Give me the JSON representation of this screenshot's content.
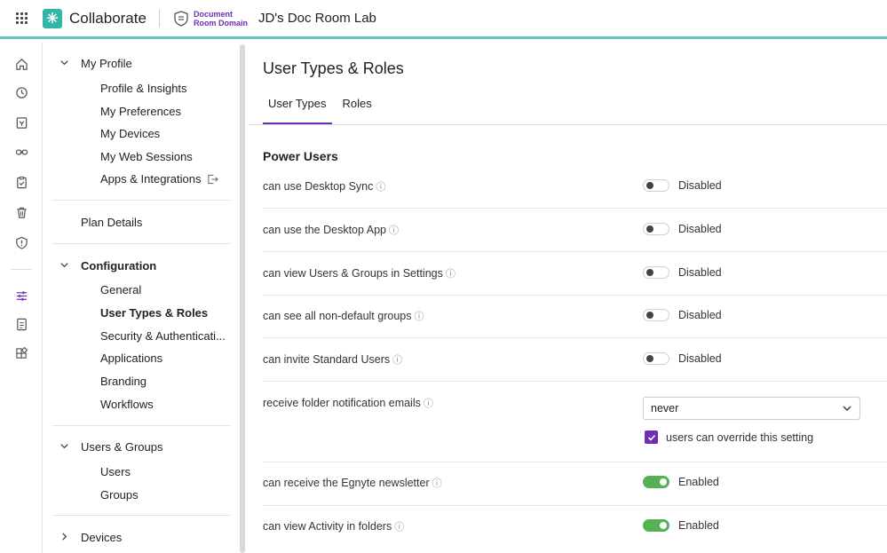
{
  "header": {
    "app_name": "Collaborate",
    "domain_line1": "Document",
    "domain_line2": "Room Domain",
    "room_name": "JD's Doc Room Lab"
  },
  "rail": {
    "icons": [
      "home-icon",
      "clock-icon",
      "inbox-icon",
      "link-icon",
      "clipboard-icon",
      "trash-icon",
      "shield-icon",
      "sliders-icon",
      "report-icon",
      "apps-icon"
    ]
  },
  "nav": {
    "my_profile": {
      "label": "My Profile",
      "items": [
        "Profile & Insights",
        "My Preferences",
        "My Devices",
        "My Web Sessions",
        "Apps & Integrations"
      ]
    },
    "plan_details": "Plan Details",
    "configuration": {
      "label": "Configuration",
      "items": [
        "General",
        "User Types & Roles",
        "Security & Authenticati...",
        "Applications",
        "Branding",
        "Workflows"
      ]
    },
    "users_groups": {
      "label": "Users & Groups",
      "items": [
        "Users",
        "Groups"
      ]
    },
    "devices": "Devices"
  },
  "main": {
    "title": "User Types & Roles",
    "tabs": [
      "User Types",
      "Roles"
    ],
    "section_title": "Power Users",
    "rows": [
      {
        "label": "can use Desktop Sync",
        "state": "Disabled"
      },
      {
        "label": "can use the Desktop App",
        "state": "Disabled"
      },
      {
        "label": "can view Users & Groups in Settings",
        "state": "Disabled"
      },
      {
        "label": "can see all non-default groups",
        "state": "Disabled"
      },
      {
        "label": "can invite Standard Users",
        "state": "Disabled"
      }
    ],
    "notification_row": {
      "label": "receive folder notification emails",
      "select_value": "never",
      "checkbox_label": "users can override this setting",
      "checked": true
    },
    "rows2": [
      {
        "label": "can receive the Egnyte newsletter",
        "state": "Enabled"
      },
      {
        "label": "can view Activity in folders",
        "state": "Enabled"
      }
    ],
    "info_glyph": "ⓘ"
  },
  "colors": {
    "accent": "#6e2fb5",
    "teal": "#5dc6bf",
    "enabled": "#56b056"
  }
}
